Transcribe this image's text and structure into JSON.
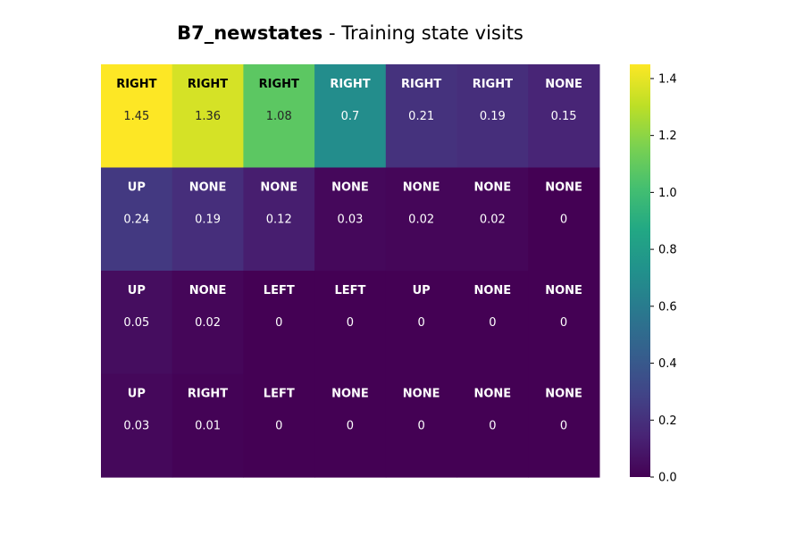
{
  "chart_data": {
    "type": "heatmap",
    "title": {
      "bold_part": "B7_newstates",
      "rest": " - Training state visits"
    },
    "rows": 4,
    "cols": 7,
    "values": [
      [
        1.45,
        1.36,
        1.08,
        0.7,
        0.21,
        0.19,
        0.15
      ],
      [
        0.24,
        0.19,
        0.12,
        0.03,
        0.02,
        0.02,
        0
      ],
      [
        0.05,
        0.02,
        0,
        0,
        0,
        0,
        0
      ],
      [
        0.03,
        0.01,
        0,
        0,
        0,
        0,
        0
      ]
    ],
    "actions": [
      [
        "RIGHT",
        "RIGHT",
        "RIGHT",
        "RIGHT",
        "RIGHT",
        "RIGHT",
        "NONE"
      ],
      [
        "UP",
        "NONE",
        "NONE",
        "NONE",
        "NONE",
        "NONE",
        "NONE"
      ],
      [
        "UP",
        "NONE",
        "LEFT",
        "LEFT",
        "UP",
        "NONE",
        "NONE"
      ],
      [
        "UP",
        "RIGHT",
        "LEFT",
        "NONE",
        "NONE",
        "NONE",
        "NONE"
      ]
    ],
    "colormap": "viridis",
    "colorbar": {
      "min": 0.0,
      "max": 1.45,
      "ticks": [
        0.0,
        0.2,
        0.4,
        0.6,
        0.8,
        1.0,
        1.2,
        1.4
      ],
      "tick_labels": [
        "0.0",
        "0.2",
        "0.4",
        "0.6",
        "0.8",
        "1.0",
        "1.2",
        "1.4"
      ]
    },
    "grid": false,
    "legend": "colorbar-right"
  }
}
